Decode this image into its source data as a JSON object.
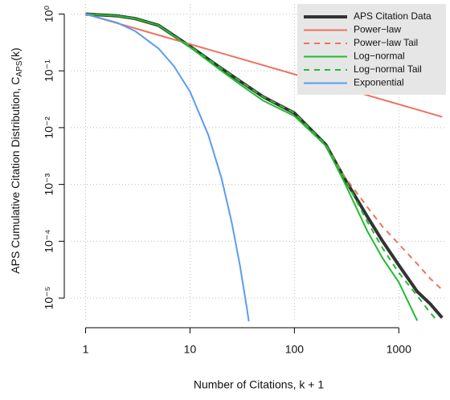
{
  "chart_data": {
    "type": "line",
    "xlabel": "Number of Citations, k + 1",
    "ylabel_parts": [
      "APS Cumulative Citation Distribution, C",
      "APS",
      "(k)"
    ],
    "xlog": true,
    "ylog": true,
    "grid": true,
    "legend": "top-right",
    "xlim": [
      0.72,
      2830
    ],
    "ylim": [
      3.9e-06,
      1.5
    ],
    "xticks": [
      1,
      10,
      100,
      1000
    ],
    "yticks": [
      {
        "value": 1,
        "label": "10⁰"
      },
      {
        "value": 0.1,
        "label": "10⁻¹"
      },
      {
        "value": 0.01,
        "label": "10⁻²"
      },
      {
        "value": 0.001,
        "label": "10⁻³"
      },
      {
        "value": 0.0001,
        "label": "10⁻⁴"
      },
      {
        "value": 1e-05,
        "label": "10⁻⁵"
      }
    ],
    "series": [
      {
        "name": "APS Citation Data",
        "color": "#333333",
        "linewidth": 4,
        "dash": false,
        "x": [
          1,
          2,
          3,
          5,
          10,
          20,
          30,
          50,
          100,
          200,
          300,
          500,
          700,
          1000,
          1500,
          2000,
          2600
        ],
        "values": [
          1,
          0.93,
          0.83,
          0.63,
          0.27,
          0.11,
          0.066,
          0.035,
          0.018,
          0.005,
          0.0013,
          0.00027,
          0.0001,
          3.8e-05,
          1.3e-05,
          7.9e-06,
          4.5e-06
        ]
      },
      {
        "name": "Power−law",
        "color": "#f07060",
        "linewidth": 2,
        "dash": false,
        "x": [
          1,
          2600
        ],
        "values": [
          1,
          0.0155
        ]
      },
      {
        "name": "Power−law Tail",
        "color": "#f07060",
        "linewidth": 2,
        "dash": true,
        "x": [
          1,
          2,
          3,
          5,
          10,
          20,
          30,
          50,
          100,
          200,
          300,
          500,
          700,
          1000,
          1500,
          2000,
          2600
        ],
        "values": [
          1,
          0.93,
          0.83,
          0.63,
          0.27,
          0.11,
          0.066,
          0.035,
          0.018,
          0.005,
          0.0014,
          0.0004,
          0.00018,
          8.9e-05,
          4e-05,
          2.2e-05,
          1.4e-05
        ]
      },
      {
        "name": "Log−normal",
        "color": "#22bb33",
        "linewidth": 2,
        "dash": false,
        "x": [
          1,
          2,
          3,
          5,
          10,
          20,
          30,
          50,
          100,
          200,
          300,
          500,
          700,
          1000,
          1500
        ],
        "values": [
          1,
          0.93,
          0.83,
          0.63,
          0.26,
          0.1,
          0.058,
          0.03,
          0.016,
          0.0048,
          0.0011,
          0.00015,
          5e-05,
          1.9e-05,
          4e-06
        ]
      },
      {
        "name": "Log−normal Tail",
        "color": "#22bb33",
        "linewidth": 2,
        "dash": true,
        "x": [
          1,
          2,
          3,
          5,
          10,
          20,
          30,
          50,
          100,
          200,
          300,
          500,
          700,
          1000,
          1500,
          2000,
          2600
        ],
        "values": [
          1,
          0.93,
          0.83,
          0.63,
          0.27,
          0.11,
          0.066,
          0.035,
          0.018,
          0.005,
          0.0013,
          0.00022,
          7.5e-05,
          2.8e-05,
          1.1e-05,
          5.5e-06,
          3.2e-06
        ]
      },
      {
        "name": "Exponential",
        "color": "#5b9cf0",
        "linewidth": 2,
        "dash": false,
        "x": [
          1,
          2,
          3,
          5,
          7,
          10,
          15,
          20,
          25,
          30,
          35,
          38
        ],
        "values": [
          1,
          0.705,
          0.497,
          0.247,
          0.122,
          0.043,
          0.0074,
          0.0013,
          0.00022,
          3.9e-05,
          6.8e-06,
          2.4e-06
        ]
      }
    ]
  }
}
